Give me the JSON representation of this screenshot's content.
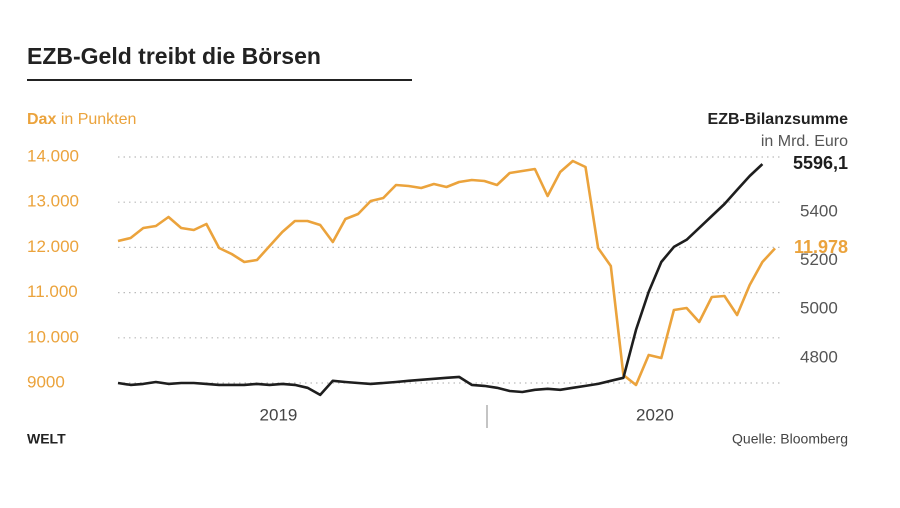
{
  "chart_data": {
    "type": "line",
    "title": "EZB-Geld treibt die Börsen",
    "ylabel": {
      "strong": "Dax",
      "rest": "in Punkten"
    },
    "y2label": {
      "strong": "EZB-Bilanzsumme",
      "rest": "in Mrd. Euro"
    },
    "brand": "WELT",
    "source": "Quelle: Bloomberg",
    "xlim": [
      0,
      52
    ],
    "xticks": [
      {
        "value": 12.7,
        "label": "2019"
      },
      {
        "value": 42.5,
        "label": "2020"
      }
    ],
    "ylim": [
      8624,
      14155
    ],
    "yticks": [
      9000,
      {
        "value": 10000,
        "label": "10.000"
      },
      {
        "value": 11000,
        "label": "11.000"
      },
      {
        "value": 12000,
        "label": "12.000"
      },
      {
        "value": 13000,
        "label": "13.000"
      },
      {
        "value": 14000,
        "label": "14.000"
      }
    ],
    "y2lim": [
      4627,
      5654
    ],
    "y2ticks": [
      4800,
      5000,
      5200,
      5400
    ],
    "grid": true,
    "series": [
      {
        "name": "Dax",
        "color": "#eba33c",
        "values": [
          12142,
          12208,
          12429,
          12473,
          12673,
          12429,
          12385,
          12518,
          11987,
          11854,
          11677,
          11721,
          12031,
          12341,
          12584,
          12584,
          12496,
          12119,
          12628,
          12739,
          13027,
          13093,
          13381,
          13358,
          13314,
          13403,
          13336,
          13447,
          13491,
          13469,
          13381,
          13646,
          13690,
          13735,
          13137,
          13668,
          13912,
          13779,
          11987,
          11588,
          9177,
          8956,
          9619,
          9553,
          10615,
          10659,
          10350,
          10903,
          10925,
          10504,
          11168,
          11677,
          11978
        ],
        "value_labels": {
          "52": "11.978"
        }
      },
      {
        "name": "EZB-Bilanzsumme",
        "color": "#1e1e1e",
        "axis": "y2",
        "values": [
          4697,
          4689,
          4693,
          4701,
          4693,
          4697,
          4697,
          4693,
          4689,
          4689,
          4689,
          4693,
          4689,
          4693,
          4689,
          4677,
          4648,
          4706,
          4701,
          4697,
          4693,
          4697,
          4701,
          4706,
          4710,
          4714,
          4718,
          4722,
          4689,
          4685,
          4677,
          4664,
          4660,
          4669,
          4673,
          4669,
          4677,
          4685,
          4693,
          4706,
          4718,
          4915,
          5071,
          5194,
          5256,
          5285,
          5334,
          5383,
          5432,
          5490,
          5547,
          5596.1,
          null
        ],
        "value_labels": {
          "51": "5596,1"
        }
      }
    ]
  }
}
